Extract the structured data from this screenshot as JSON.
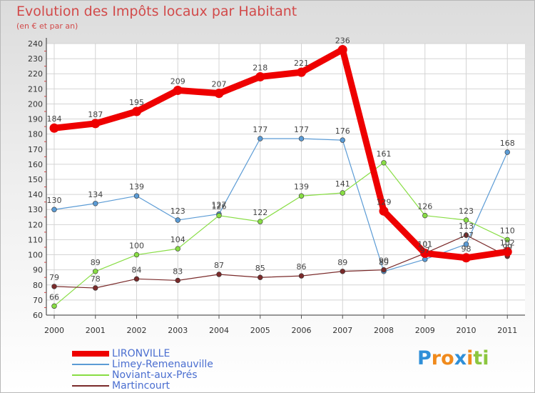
{
  "header": {
    "title": "Evolution des Impôts locaux par Habitant",
    "subtitle": "(en € et par an)"
  },
  "chart_data": {
    "type": "line",
    "title": "Evolution des Impôts locaux par Habitant",
    "subtitle": "(en € et par an)",
    "xlabel": "",
    "ylabel": "",
    "x": [
      "2000",
      "2001",
      "2002",
      "2003",
      "2004",
      "2005",
      "2006",
      "2007",
      "2008",
      "2009",
      "2010",
      "2011"
    ],
    "ylim": [
      60,
      240
    ],
    "yticks": [
      60,
      70,
      80,
      90,
      100,
      110,
      120,
      130,
      140,
      150,
      160,
      170,
      180,
      190,
      200,
      210,
      220,
      230,
      240
    ],
    "grid": true,
    "legend_position": "bottom-left",
    "series": [
      {
        "name": "LIRONVILLE",
        "color": "#ee0000",
        "style": "thick",
        "values": [
          184,
          187,
          195,
          209,
          207,
          218,
          221,
          236,
          129,
          101,
          98,
          102
        ],
        "labels": [
          "184",
          "187",
          "195",
          "209",
          "207",
          "218",
          "221",
          "236",
          "129",
          "101",
          "98",
          "102"
        ]
      },
      {
        "name": "Limey-Remenauville",
        "color": "#5b9bd5",
        "style": "thin",
        "values": [
          130,
          134,
          139,
          123,
          127,
          177,
          177,
          176,
          89,
          97,
          107,
          168
        ],
        "labels": [
          "130",
          "134",
          "139",
          "123",
          "127",
          "177",
          "177",
          "176",
          "89",
          "97",
          "107",
          "168"
        ]
      },
      {
        "name": "Noviant-aux-Prés",
        "color": "#88dd44",
        "style": "thin",
        "values": [
          66,
          89,
          100,
          104,
          126,
          122,
          139,
          141,
          161,
          126,
          123,
          110
        ],
        "labels": [
          "66",
          "89",
          "100",
          "104",
          "126",
          "122",
          "139",
          "141",
          "161",
          "126",
          "123",
          "110"
        ]
      },
      {
        "name": "Martincourt",
        "color": "#7a2a2a",
        "style": "thin",
        "values": [
          79,
          78,
          84,
          83,
          87,
          85,
          86,
          89,
          90,
          101,
          113,
          99
        ],
        "labels": [
          "79",
          "78",
          "84",
          "83",
          "87",
          "85",
          "86",
          "89",
          "90",
          "101",
          "113",
          "99"
        ]
      }
    ]
  },
  "legend": {
    "items": [
      {
        "label": "LIRONVILLE",
        "color": "#ee0000"
      },
      {
        "label": "Limey-Remenauville",
        "color": "#5b9bd5"
      },
      {
        "label": "Noviant-aux-Prés",
        "color": "#88dd44"
      },
      {
        "label": "Martincourt",
        "color": "#7a2a2a"
      }
    ]
  },
  "logo": {
    "text": "Proxiti",
    "letters": [
      "P",
      "r",
      "o",
      "x",
      "i",
      "t",
      "i"
    ],
    "colors": [
      "#2f8fd8",
      "#f08a1c",
      "#f08a1c",
      "#2f8fd8",
      "#f08a1c",
      "#8cc63f",
      "#8cc63f"
    ]
  }
}
